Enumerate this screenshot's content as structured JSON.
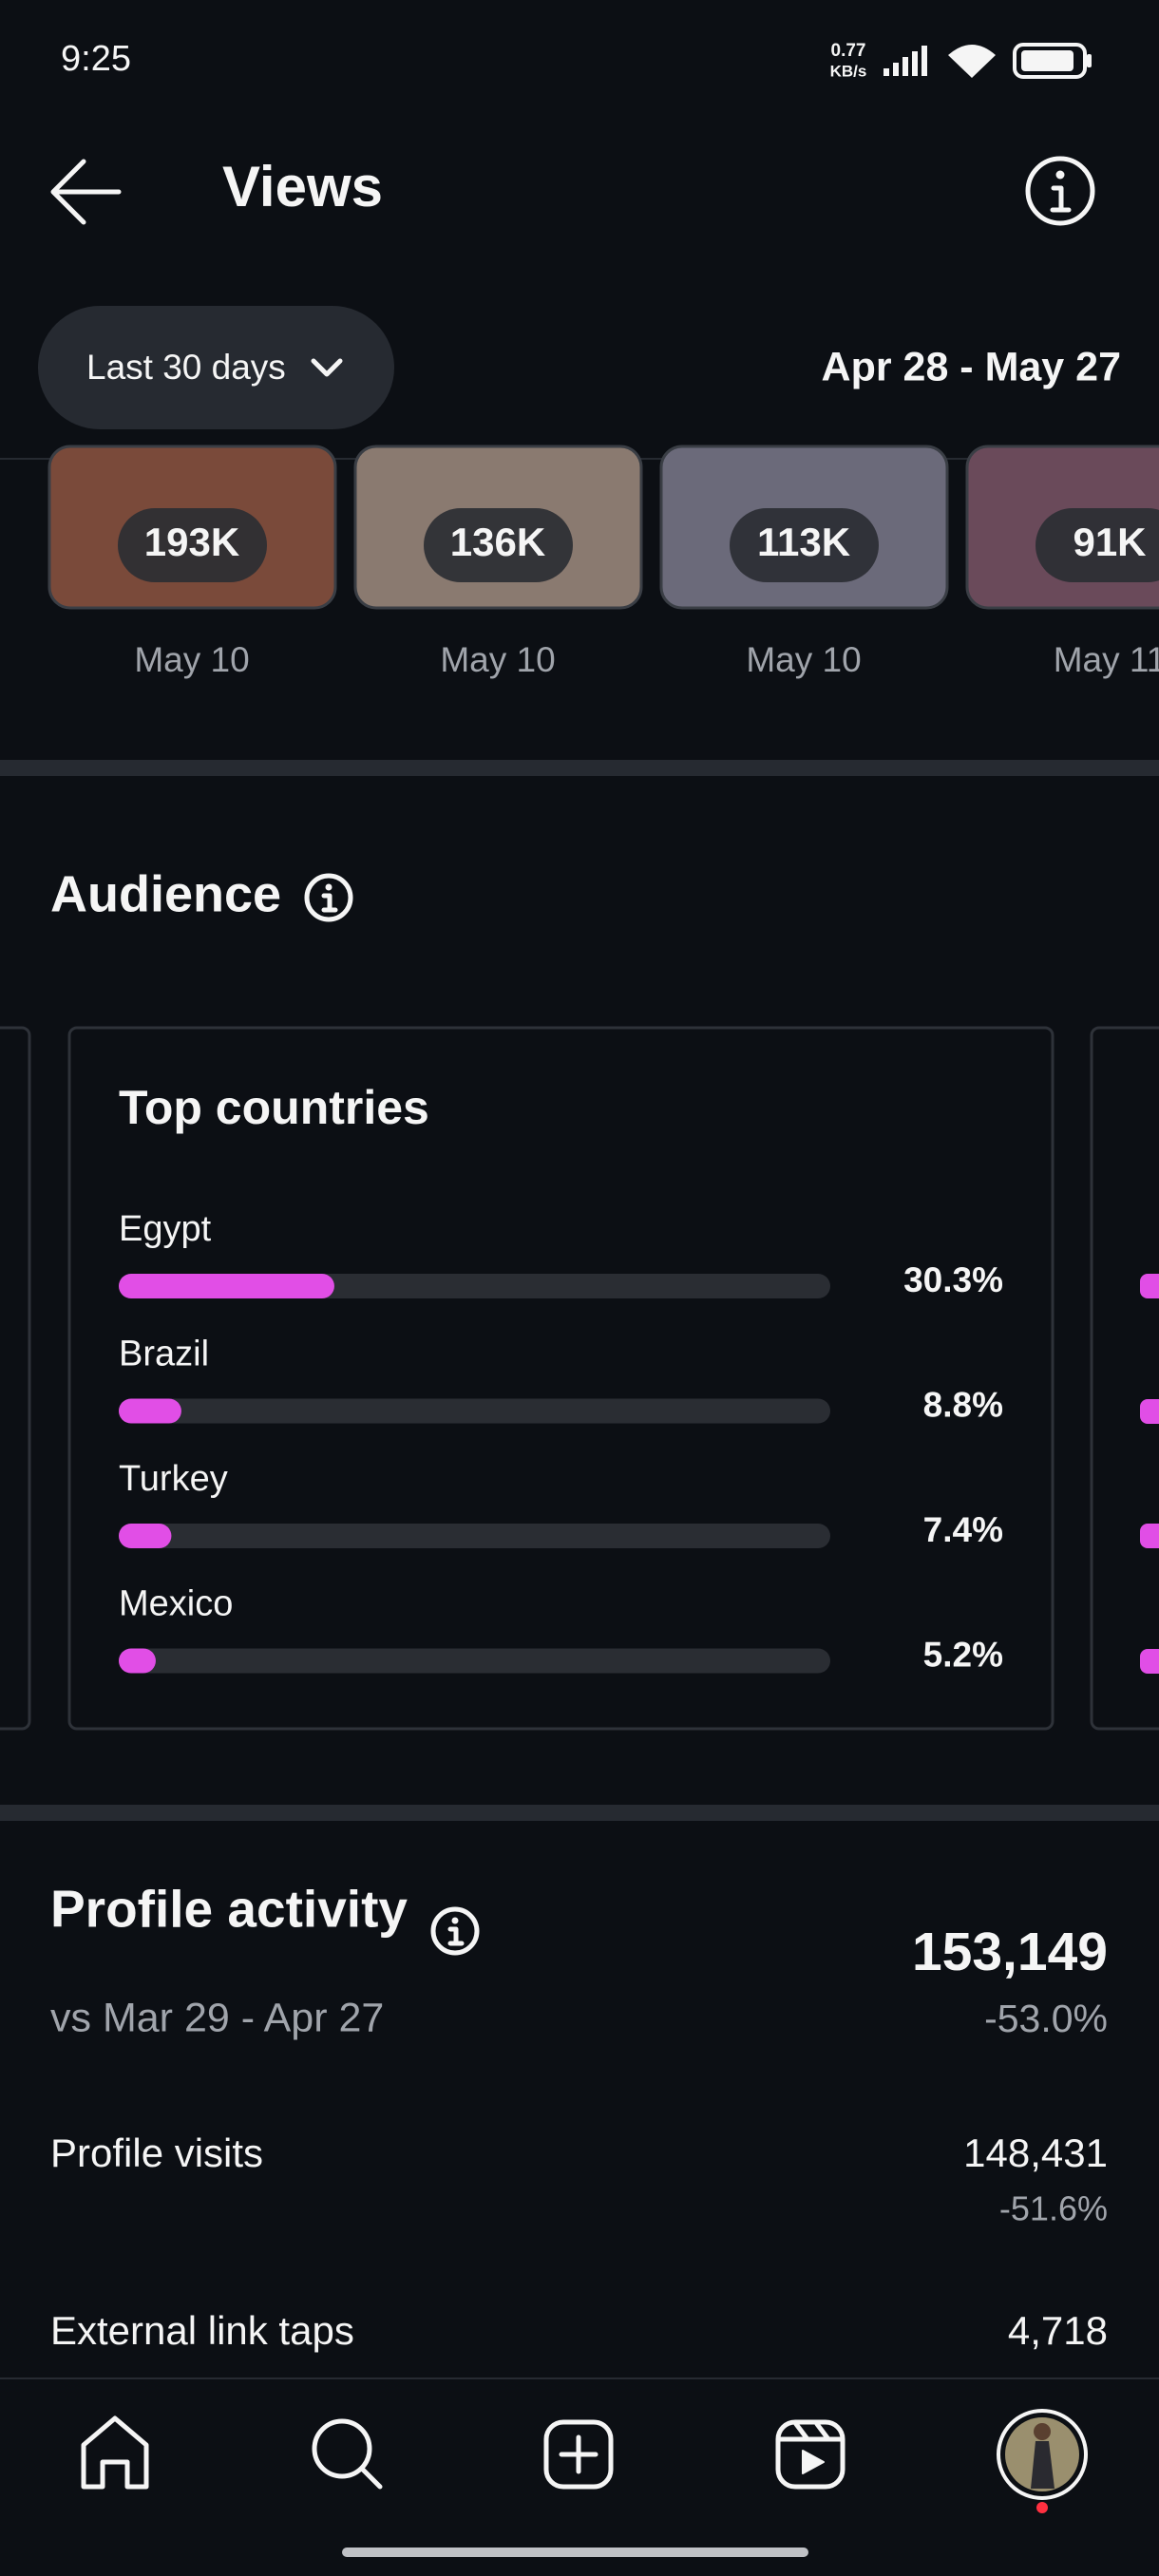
{
  "status_bar": {
    "time": "9:25",
    "speed": "0.77",
    "speed_unit": "KB/s"
  },
  "header": {
    "title": "Views"
  },
  "filter": {
    "period": "Last 30 days",
    "date_range": "Apr 28 - May 27"
  },
  "top_content": [
    {
      "views": "193K",
      "date": "May 10"
    },
    {
      "views": "136K",
      "date": "May 10"
    },
    {
      "views": "113K",
      "date": "May 10"
    },
    {
      "views": "91K",
      "date": "May 11"
    }
  ],
  "audience": {
    "title": "Audience",
    "top_countries": {
      "title": "Top countries",
      "countries": [
        "Egypt",
        "Brazil",
        "Turkey",
        "Mexico"
      ],
      "values": [
        30.3,
        8.8,
        7.4,
        5.2
      ],
      "value_labels": [
        "30.3%",
        "8.8%",
        "7.4%",
        "5.2%"
      ],
      "color": "#e14ee6"
    }
  },
  "profile_activity": {
    "title": "Profile activity",
    "comparison": "vs Mar 29 - Apr 27",
    "total": "153,149",
    "total_change": "-53.0%",
    "rows": [
      {
        "label": "Profile visits",
        "value": "148,431",
        "change": "-51.6%"
      },
      {
        "label": "External link taps",
        "value": "4,718"
      }
    ]
  }
}
